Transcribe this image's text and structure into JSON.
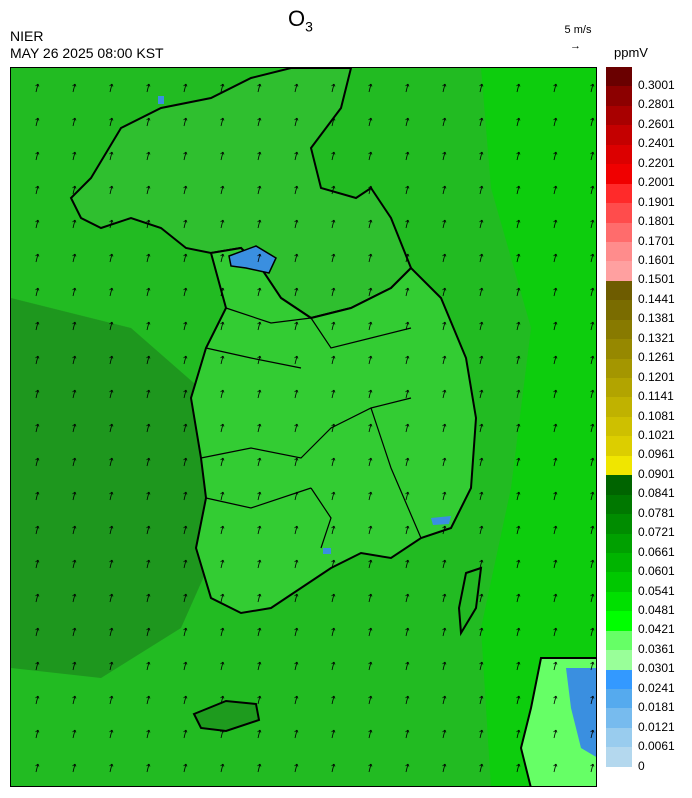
{
  "header": {
    "title_main": "O",
    "title_sub": "3",
    "agency": "NIER",
    "datetime": "MAY 26 2025 08:00 KST",
    "wind_reference": "5 m/s",
    "unit": "ppmV"
  },
  "colorbar": {
    "labels": [
      "0.3001",
      "0.2801",
      "0.2601",
      "0.2401",
      "0.2201",
      "0.2001",
      "0.1901",
      "0.1801",
      "0.1701",
      "0.1601",
      "0.1501",
      "0.1441",
      "0.1381",
      "0.1321",
      "0.1261",
      "0.1201",
      "0.1141",
      "0.1081",
      "0.1021",
      "0.0961",
      "0.0901",
      "0.0841",
      "0.0781",
      "0.0721",
      "0.0661",
      "0.0601",
      "0.0541",
      "0.0481",
      "0.0421",
      "0.0361",
      "0.0301",
      "0.0241",
      "0.0181",
      "0.0121",
      "0.0061",
      "0"
    ],
    "colors": [
      "#6a0000",
      "#8c0000",
      "#a80000",
      "#c40000",
      "#dc0000",
      "#f00000",
      "#ff2a2a",
      "#ff4c4c",
      "#ff6c6c",
      "#ff8c8c",
      "#ffa0a0",
      "#6e5c00",
      "#7a6c00",
      "#887a00",
      "#968800",
      "#a49600",
      "#b2a400",
      "#c0b200",
      "#cec000",
      "#dcce00",
      "#f0e600",
      "#006400",
      "#007800",
      "#008c00",
      "#00a000",
      "#00b400",
      "#00c800",
      "#00e000",
      "#00ff00",
      "#66ff66",
      "#99ff99",
      "#3399ff",
      "#55aaee",
      "#77bbee",
      "#99ccee",
      "#b4d8ee"
    ]
  },
  "map": {
    "background_colors": [
      "#22b922",
      "#1e9b1e",
      "#00d000",
      "#33e633",
      "#3a8fe0"
    ]
  }
}
